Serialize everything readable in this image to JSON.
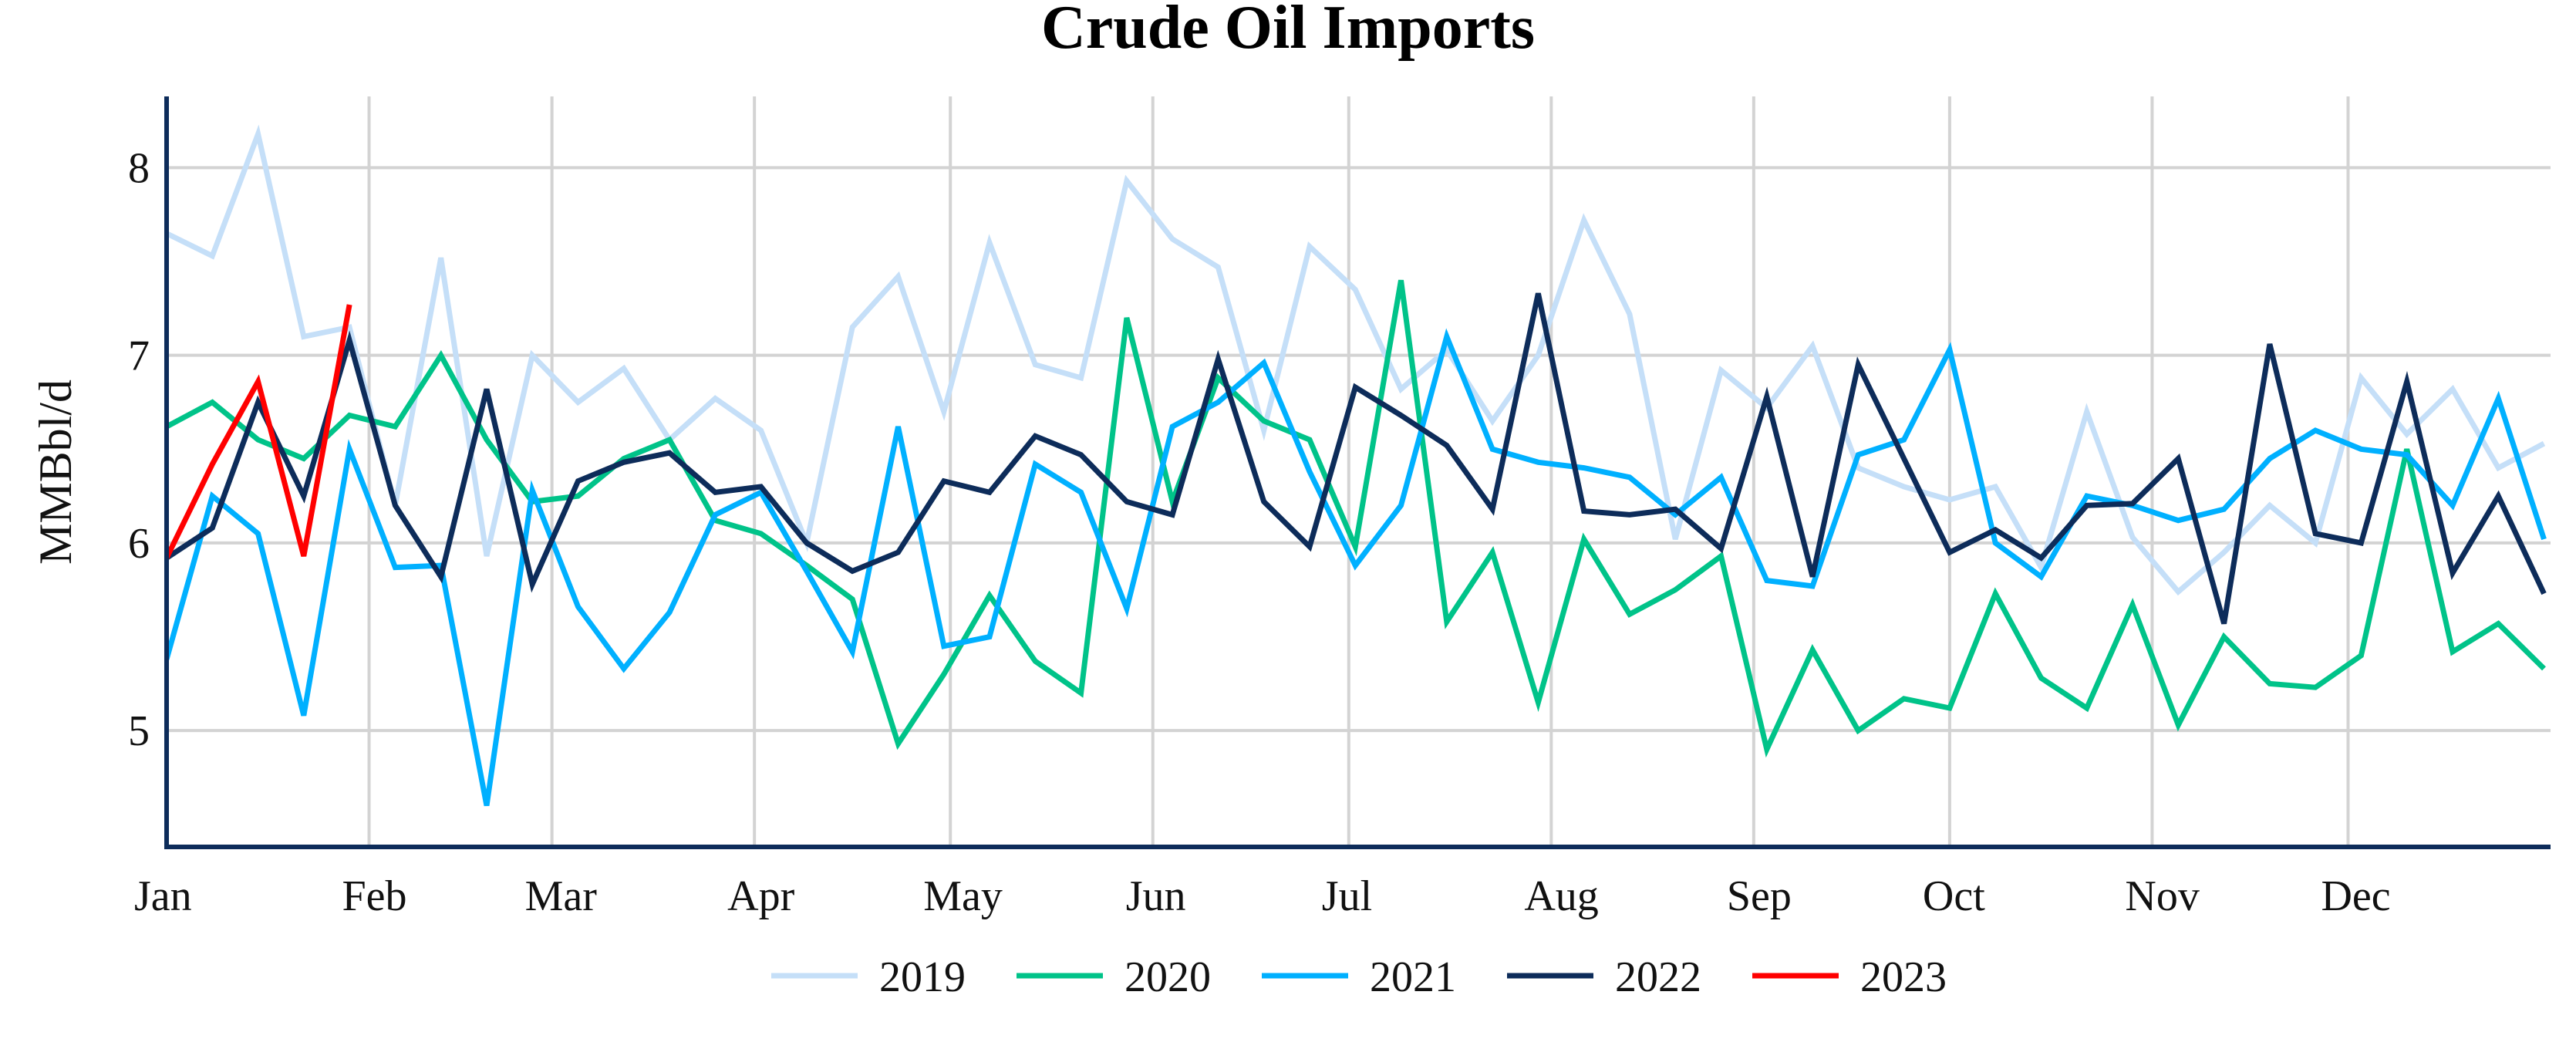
{
  "chart_data": {
    "type": "line",
    "title": "Crude Oil Imports",
    "xlabel": "",
    "ylabel": "MMBbl/d",
    "frequency": "weekly",
    "x_ticks": [
      "Jan",
      "Feb",
      "Mar",
      "Apr",
      "May",
      "Jun",
      "Jul",
      "Aug",
      "Sep",
      "Oct",
      "Nov",
      "Dec"
    ],
    "y_ticks": [
      5,
      6,
      7,
      8
    ],
    "ylim": [
      4.38,
      8.38
    ],
    "grid": true,
    "legend": "bottom",
    "series": [
      {
        "name": "2019",
        "color": "#c5dff8",
        "values": [
          7.65,
          7.53,
          8.18,
          7.1,
          7.15,
          6.2,
          7.52,
          5.93,
          7.0,
          6.75,
          6.93,
          6.55,
          6.77,
          6.6,
          6.0,
          7.15,
          7.42,
          6.7,
          7.6,
          6.95,
          6.88,
          7.93,
          7.62,
          7.47,
          6.6,
          7.58,
          7.35,
          6.82,
          7.03,
          6.65,
          7.0,
          7.72,
          7.22,
          6.02,
          6.92,
          6.72,
          7.05,
          6.4,
          6.3,
          6.23,
          6.3,
          5.87,
          6.7,
          6.03,
          5.74,
          5.95,
          6.2,
          6.0,
          6.88,
          6.58,
          6.82,
          6.4,
          6.53
        ]
      },
      {
        "name": "2020",
        "color": "#00c389",
        "values": [
          6.62,
          6.75,
          6.55,
          6.45,
          6.68,
          6.62,
          7.0,
          6.55,
          6.22,
          6.25,
          6.45,
          6.55,
          6.12,
          6.05,
          5.88,
          5.7,
          4.93,
          5.3,
          5.72,
          5.37,
          5.2,
          7.2,
          6.22,
          6.88,
          6.65,
          6.55,
          5.98,
          7.4,
          5.58,
          5.95,
          5.15,
          6.02,
          5.62,
          5.75,
          5.93,
          4.9,
          5.43,
          5.0,
          5.17,
          5.12,
          5.73,
          5.28,
          5.12,
          5.67,
          5.03,
          5.5,
          5.25,
          5.23,
          5.4,
          6.5,
          5.42,
          5.57,
          5.33
        ]
      },
      {
        "name": "2021",
        "color": "#00b0ff",
        "values": [
          5.38,
          6.25,
          6.05,
          5.08,
          6.5,
          5.87,
          5.88,
          4.6,
          6.28,
          5.66,
          5.33,
          5.63,
          6.15,
          6.27,
          5.85,
          5.42,
          6.62,
          5.45,
          5.5,
          6.42,
          6.27,
          5.65,
          6.62,
          6.75,
          6.96,
          6.38,
          5.88,
          6.2,
          7.1,
          6.5,
          6.43,
          6.4,
          6.35,
          6.15,
          6.35,
          5.8,
          5.77,
          6.47,
          6.55,
          7.03,
          6.0,
          5.82,
          6.25,
          6.2,
          6.12,
          6.18,
          6.45,
          6.6,
          6.5,
          6.47,
          6.2,
          6.77,
          6.02
        ]
      },
      {
        "name": "2022",
        "color": "#0d2c5a",
        "values": [
          5.92,
          6.08,
          6.75,
          6.25,
          7.08,
          6.2,
          5.82,
          6.82,
          5.78,
          6.33,
          6.43,
          6.48,
          6.27,
          6.3,
          6.0,
          5.85,
          5.95,
          6.33,
          6.27,
          6.57,
          6.47,
          6.22,
          6.15,
          6.98,
          6.22,
          5.98,
          6.83,
          6.68,
          6.52,
          6.18,
          7.33,
          6.17,
          6.15,
          6.18,
          5.97,
          6.78,
          5.82,
          6.95,
          6.45,
          5.95,
          6.07,
          5.92,
          6.2,
          6.21,
          6.45,
          5.57,
          7.06,
          6.05,
          6.0,
          6.86,
          5.84,
          6.25,
          5.73
        ]
      },
      {
        "name": "2023",
        "color": "#ff0000",
        "values": [
          5.92,
          6.42,
          6.86,
          5.93,
          7.27
        ]
      }
    ]
  }
}
